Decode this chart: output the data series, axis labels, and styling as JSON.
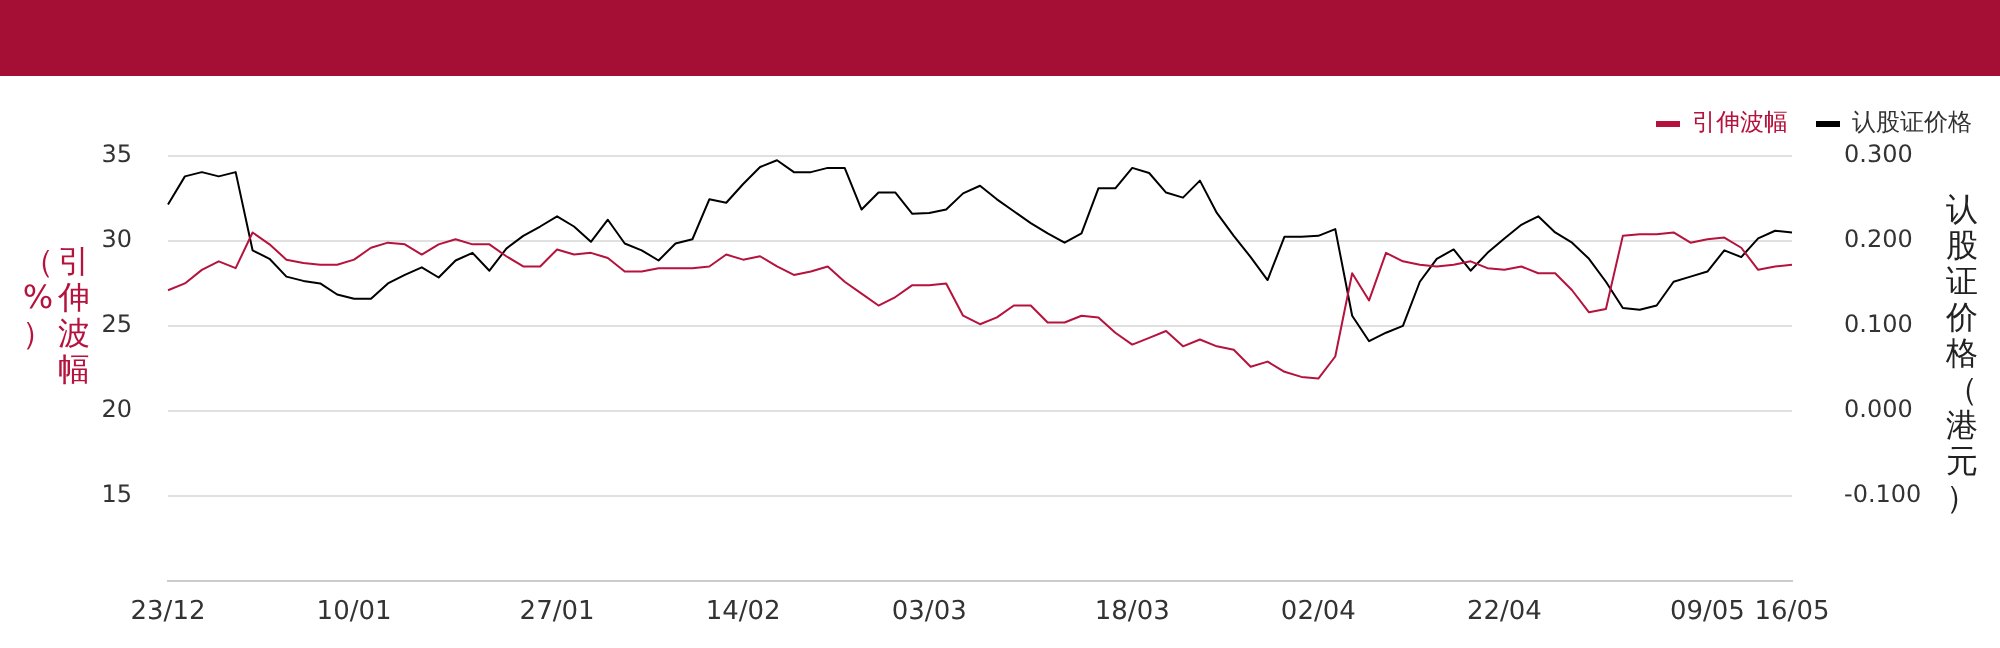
{
  "chart_data": {
    "type": "line",
    "ylabel": "引伸波幅（%）",
    "y2label": "认股证价格（港元）",
    "categories": [
      "23/12",
      null,
      null,
      null,
      null,
      null,
      null,
      null,
      null,
      null,
      null,
      "10/01",
      null,
      null,
      null,
      null,
      null,
      null,
      null,
      null,
      null,
      null,
      null,
      "27/01",
      null,
      null,
      null,
      null,
      null,
      null,
      null,
      null,
      null,
      null,
      "14/02",
      null,
      null,
      null,
      null,
      null,
      null,
      null,
      null,
      null,
      null,
      "03/03",
      null,
      null,
      null,
      null,
      null,
      null,
      null,
      null,
      null,
      null,
      null,
      "18/03",
      null,
      null,
      null,
      null,
      null,
      null,
      null,
      null,
      null,
      null,
      "02/04",
      null,
      null,
      null,
      null,
      null,
      null,
      null,
      null,
      null,
      null,
      "22/04",
      null,
      null,
      null,
      null,
      null,
      null,
      null,
      null,
      null,
      null,
      null,
      "09/05",
      null,
      null,
      null,
      null,
      "16/05"
    ],
    "series": [
      {
        "name": "引伸波幅",
        "color": "#b5133d",
        "axis": "y",
        "values": [
          27.1,
          27.5,
          28.3,
          28.8,
          28.4,
          30.5,
          29.8,
          28.9,
          28.7,
          28.6,
          28.6,
          28.9,
          29.6,
          29.9,
          29.8,
          29.2,
          29.8,
          30.1,
          29.8,
          29.8,
          29.1,
          28.5,
          28.5,
          29.5,
          29.2,
          29.3,
          29.0,
          28.2,
          28.2,
          28.4,
          28.4,
          28.4,
          28.5,
          29.2,
          28.9,
          29.1,
          28.5,
          28.0,
          28.2,
          28.5,
          27.6,
          26.9,
          26.2,
          26.7,
          27.4,
          27.4,
          27.5,
          25.6,
          25.1,
          25.5,
          26.2,
          26.2,
          25.2,
          25.2,
          25.6,
          25.5,
          24.6,
          23.9,
          24.3,
          24.7,
          23.8,
          24.2,
          23.8,
          23.6,
          22.6,
          22.9,
          22.3,
          22.0,
          21.9,
          23.2,
          28.1,
          26.5,
          29.3,
          28.8,
          28.6,
          28.5,
          28.6,
          28.8,
          28.4,
          28.3,
          28.5,
          28.1,
          28.1,
          27.1,
          25.8,
          26.0,
          30.3,
          30.4,
          30.4,
          30.5,
          29.9,
          30.1,
          30.2,
          29.6,
          28.3,
          28.5,
          28.6
        ]
      },
      {
        "name": "认股证价格",
        "color": "#000000",
        "axis": "y2",
        "values": [
          0.243,
          0.276,
          0.281,
          0.276,
          0.281,
          0.189,
          0.179,
          0.158,
          0.153,
          0.15,
          0.137,
          0.132,
          0.132,
          0.15,
          0.16,
          0.169,
          0.157,
          0.177,
          0.186,
          0.165,
          0.191,
          0.206,
          0.217,
          0.229,
          0.217,
          0.199,
          0.225,
          0.197,
          0.189,
          0.177,
          0.197,
          0.202,
          0.249,
          0.245,
          0.267,
          0.287,
          0.295,
          0.281,
          0.281,
          0.286,
          0.286,
          0.237,
          0.257,
          0.257,
          0.232,
          0.233,
          0.237,
          0.256,
          0.265,
          0.249,
          0.235,
          0.221,
          0.209,
          0.198,
          0.209,
          0.262,
          0.262,
          0.286,
          0.28,
          0.257,
          0.251,
          0.271,
          0.233,
          0.206,
          0.181,
          0.154,
          0.205,
          0.205,
          0.206,
          0.214,
          0.112,
          0.082,
          0.092,
          0.1,
          0.152,
          0.179,
          0.19,
          0.165,
          0.186,
          0.203,
          0.219,
          0.229,
          0.21,
          0.198,
          0.179,
          0.152,
          0.121,
          0.119,
          0.124,
          0.152,
          0.158,
          0.164,
          0.189,
          0.181,
          0.203,
          0.212,
          0.21
        ]
      }
    ],
    "ylim": [
      10,
      35
    ],
    "yticks": [
      15,
      20,
      25,
      30,
      35
    ],
    "y2lim": [
      -0.2,
      0.3
    ],
    "y2ticks": [
      {
        "value": -0.1,
        "label": "-0.100"
      },
      {
        "value": 0,
        "label": "0.000"
      },
      {
        "value": 0.1,
        "label": "0.100"
      },
      {
        "value": 0.2,
        "label": "0.200"
      },
      {
        "value": 0.3,
        "label": "0.300"
      }
    ],
    "grid": "y",
    "legend": "top right",
    "marker": "none",
    "tick_labels": "xy"
  }
}
